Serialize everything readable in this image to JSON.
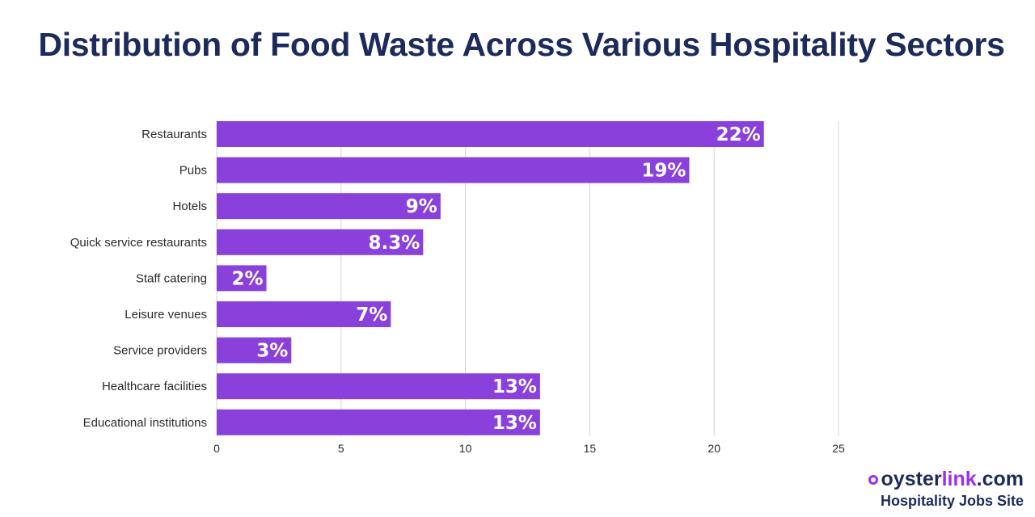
{
  "chart_data": {
    "type": "bar",
    "orientation": "horizontal",
    "title": "Distribution of Food Waste Across Various Hospitality Sectors",
    "categories": [
      "Restaurants",
      "Pubs",
      "Hotels",
      "Quick service restaurants",
      "Staff catering",
      "Leisure venues",
      "Service providers",
      "Healthcare facilities",
      "Educational institutions"
    ],
    "values": [
      22,
      19,
      9,
      8.3,
      2,
      7,
      3,
      13,
      13
    ],
    "data_labels": [
      "22%",
      "19%",
      "9%",
      "8.3%",
      "2%",
      "7%",
      "3%",
      "13%",
      "13%"
    ],
    "xlim": [
      0,
      25
    ],
    "x_ticks": [
      0,
      5,
      10,
      15,
      20,
      25
    ],
    "grid": true,
    "legend": "none",
    "bar_color": "#8a41dc",
    "grid_color": "#d4d4d4"
  },
  "brand": {
    "part1": "oyster",
    "part2": "link",
    "part3": ".com",
    "tagline": "Hospitality Jobs Site",
    "color_dark": "#1d2b5c",
    "color_accent": "#9b30f0",
    "icon": "oysterlink-logo-icon"
  }
}
